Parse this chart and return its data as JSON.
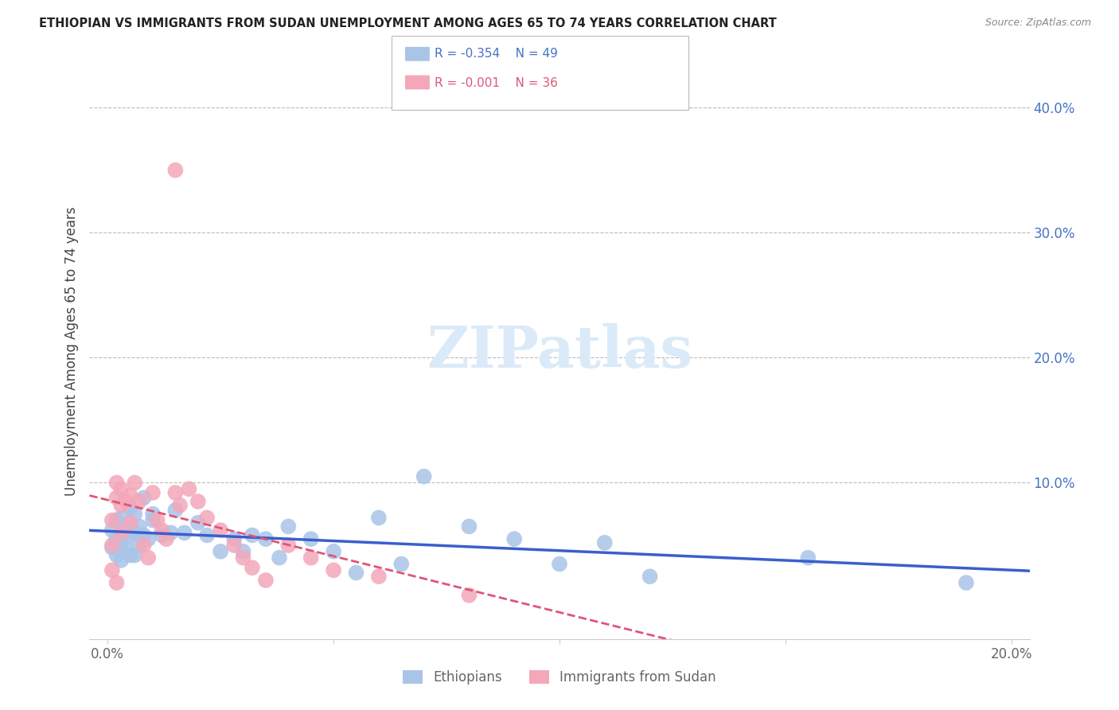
{
  "title": "ETHIOPIAN VS IMMIGRANTS FROM SUDAN UNEMPLOYMENT AMONG AGES 65 TO 74 YEARS CORRELATION CHART",
  "source": "Source: ZipAtlas.com",
  "ylabel": "Unemployment Among Ages 65 to 74 years",
  "xlim": [
    -0.004,
    0.204
  ],
  "ylim": [
    -0.025,
    0.435
  ],
  "background_color": "#ffffff",
  "grid_color": "#bbbbbb",
  "ethiopian_color": "#aac4e8",
  "sudan_color": "#f4a7b9",
  "trend_blue": "#3a5fcd",
  "trend_pink": "#e05577",
  "watermark_color": "#daeaf8",
  "legend_R_ethiopian": "-0.354",
  "legend_N_ethiopian": "49",
  "legend_R_sudan": "-0.001",
  "legend_N_sudan": "36",
  "title_color": "#222222",
  "source_color": "#888888",
  "right_axis_color": "#4472c4",
  "bottom_label_color": "#666666",
  "ethiopians_x": [
    0.001,
    0.001,
    0.002,
    0.002,
    0.002,
    0.003,
    0.003,
    0.003,
    0.004,
    0.004,
    0.005,
    0.005,
    0.005,
    0.006,
    0.006,
    0.006,
    0.007,
    0.007,
    0.008,
    0.008,
    0.009,
    0.01,
    0.01,
    0.012,
    0.014,
    0.015,
    0.017,
    0.02,
    0.022,
    0.025,
    0.028,
    0.03,
    0.032,
    0.035,
    0.038,
    0.04,
    0.045,
    0.05,
    0.055,
    0.06,
    0.065,
    0.07,
    0.08,
    0.09,
    0.1,
    0.11,
    0.12,
    0.155,
    0.19
  ],
  "ethiopians_y": [
    0.062,
    0.048,
    0.07,
    0.055,
    0.042,
    0.072,
    0.052,
    0.038,
    0.065,
    0.048,
    0.08,
    0.058,
    0.042,
    0.075,
    0.06,
    0.042,
    0.065,
    0.05,
    0.088,
    0.058,
    0.055,
    0.07,
    0.075,
    0.058,
    0.06,
    0.078,
    0.06,
    0.068,
    0.058,
    0.045,
    0.055,
    0.045,
    0.058,
    0.055,
    0.04,
    0.065,
    0.055,
    0.045,
    0.028,
    0.072,
    0.035,
    0.105,
    0.065,
    0.055,
    0.035,
    0.052,
    0.025,
    0.04,
    0.02
  ],
  "sudan_x": [
    0.001,
    0.001,
    0.001,
    0.002,
    0.002,
    0.002,
    0.003,
    0.003,
    0.003,
    0.004,
    0.005,
    0.005,
    0.006,
    0.007,
    0.008,
    0.009,
    0.01,
    0.011,
    0.012,
    0.013,
    0.015,
    0.015,
    0.016,
    0.018,
    0.02,
    0.022,
    0.025,
    0.028,
    0.03,
    0.032,
    0.035,
    0.04,
    0.045,
    0.05,
    0.06,
    0.08
  ],
  "sudan_y": [
    0.07,
    0.05,
    0.03,
    0.1,
    0.088,
    0.02,
    0.095,
    0.082,
    0.06,
    0.085,
    0.09,
    0.068,
    0.1,
    0.085,
    0.05,
    0.04,
    0.092,
    0.07,
    0.062,
    0.055,
    0.35,
    0.092,
    0.082,
    0.095,
    0.085,
    0.072,
    0.062,
    0.05,
    0.04,
    0.032,
    0.022,
    0.05,
    0.04,
    0.03,
    0.025,
    0.01
  ],
  "yticks_right": [
    0.1,
    0.2,
    0.3,
    0.4
  ],
  "ytick_labels_right": [
    "10.0%",
    "20.0%",
    "30.0%",
    "40.0%"
  ],
  "xticks": [
    0.0,
    0.05,
    0.1,
    0.15,
    0.2
  ],
  "xtick_labels": [
    "0.0%",
    "",
    "",
    "",
    "20.0%"
  ]
}
